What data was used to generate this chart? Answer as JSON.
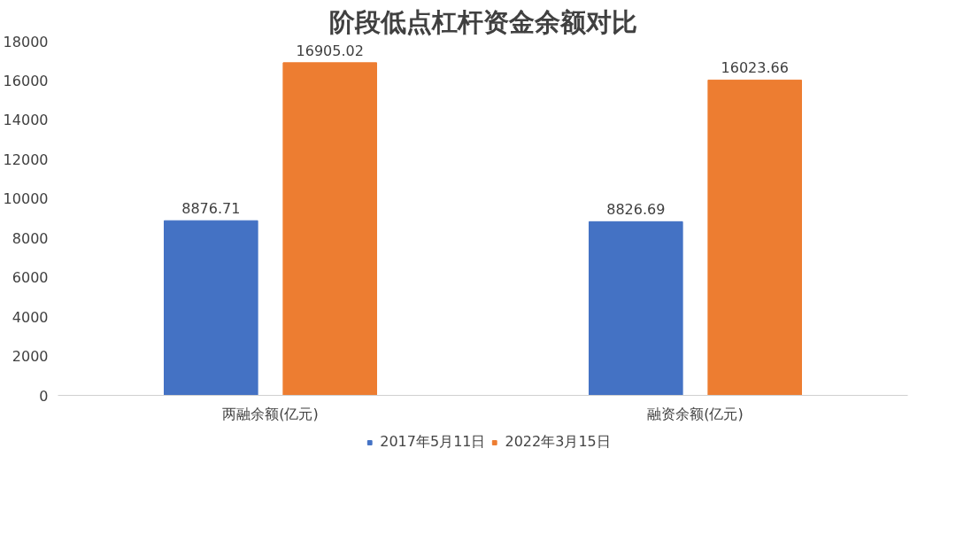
{
  "chart_data": {
    "type": "bar",
    "title": "阶段低点杠杆资金余额对比",
    "categories": [
      "两融余额(亿元)",
      "融资余额(亿元)"
    ],
    "series": [
      {
        "name": "2017年5月11日",
        "color": "#4472c4",
        "values": [
          8876.71,
          8826.69
        ]
      },
      {
        "name": "2022年3月15日",
        "color": "#ed7d31",
        "values": [
          16905.02,
          16023.66
        ]
      }
    ],
    "ylim": [
      0,
      18000
    ],
    "yticks": [
      0,
      2000,
      4000,
      6000,
      8000,
      10000,
      12000,
      14000,
      16000,
      18000
    ],
    "grid": false,
    "legend": "bottom",
    "data_labels": true
  }
}
